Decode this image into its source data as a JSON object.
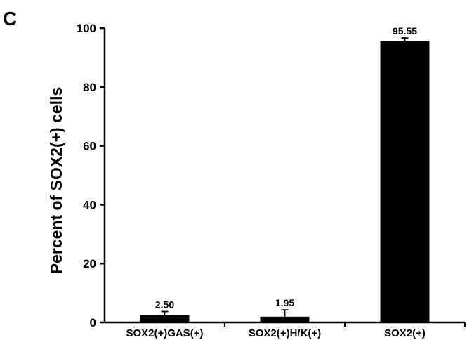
{
  "panel_letter": "C",
  "chart_data": {
    "type": "bar",
    "title": "",
    "xlabel": "",
    "ylabel": "Percent of SOX2(+) cells",
    "ylim": [
      0,
      100
    ],
    "yticks": [
      0,
      20,
      40,
      60,
      80,
      100
    ],
    "yticks_labels": [
      "0",
      "20",
      "40",
      "60",
      "80",
      "100"
    ],
    "grid": false,
    "categories": [
      "SOX2(+)GAS(+)",
      "SOX2(+)H/K(+)",
      "SOX2(+)"
    ],
    "values": [
      2.5,
      1.95,
      95.55
    ],
    "value_labels": [
      "2.50",
      "1.95",
      "95.55"
    ],
    "errors": [
      1.2,
      2.3,
      1.1
    ],
    "bar_color": "#000000"
  }
}
